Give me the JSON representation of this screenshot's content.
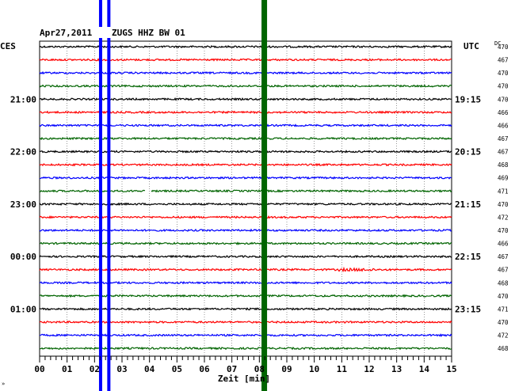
{
  "header": {
    "date": "Apr27,2011",
    "station": "ZUGS HHZ BW 01",
    "left_tz": "CES",
    "right_tz": "UTC",
    "dc_label": "DC"
  },
  "chart_data": {
    "type": "line",
    "title": "Apr27,2011 ZUGS HHZ BW 01",
    "xlabel": "Zeit [min]",
    "xlim": [
      0,
      15
    ],
    "x_ticks": [
      "00",
      "01",
      "02",
      "03",
      "04",
      "05",
      "06",
      "07",
      "08",
      "09",
      "10",
      "11",
      "12",
      "13",
      "14",
      "15"
    ],
    "trace_colors": [
      "#000000",
      "#ff0000",
      "#0000ff",
      "#006400"
    ],
    "num_traces": 24,
    "left_time_labels": [
      {
        "trace": 4,
        "label": "21:00"
      },
      {
        "trace": 8,
        "label": "22:00"
      },
      {
        "trace": 12,
        "label": "23:00"
      },
      {
        "trace": 16,
        "label": "00:00"
      },
      {
        "trace": 20,
        "label": "01:00"
      }
    ],
    "right_time_labels": [
      {
        "trace": 4,
        "label": "19:15"
      },
      {
        "trace": 8,
        "label": "20:15"
      },
      {
        "trace": 12,
        "label": "21:15"
      },
      {
        "trace": 16,
        "label": "22:15"
      },
      {
        "trace": 20,
        "label": "23:15"
      }
    ],
    "dc_values": [
      470,
      467,
      470,
      470,
      470,
      466,
      466,
      467,
      467,
      468,
      469,
      471,
      470,
      472,
      470,
      466,
      467,
      467,
      468,
      470,
      471,
      470,
      472,
      468
    ],
    "markers": [
      {
        "color": "#0000ff",
        "minute": 2.22
      },
      {
        "color": "#0000ff",
        "minute": 2.52
      },
      {
        "color": "#006400",
        "minute": 8.18
      }
    ],
    "gap": {
      "trace": 11,
      "from_minute": 3.85,
      "to_minute": 4.05
    },
    "grid": true
  }
}
